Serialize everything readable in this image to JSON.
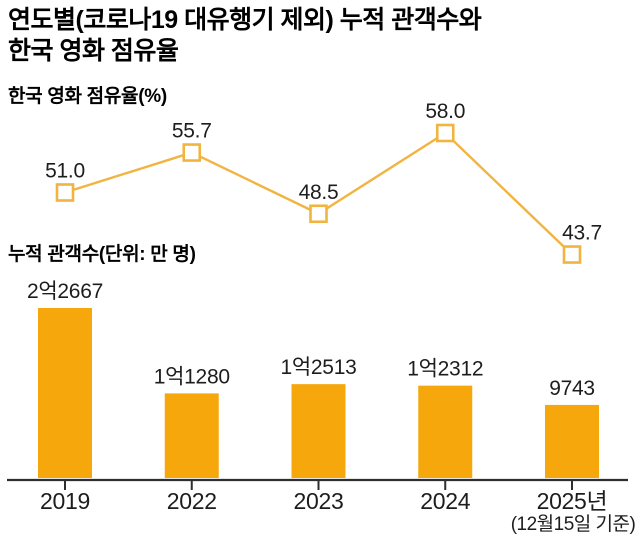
{
  "header": {
    "title_line1": "연도별(코로나19 대유행기 제외) 누적 관객수와",
    "title_line2": "한국 영화 점유율"
  },
  "x_axis": {
    "labels": [
      "2019",
      "2022",
      "2023",
      "2024",
      "2025년"
    ],
    "footnote": "(12월15일 기준)"
  },
  "colors": {
    "bar": "#F5A70C",
    "line": "#F2B441",
    "axis": "#2E2E2E",
    "label_text": "#1D1D1D"
  },
  "chart_data": [
    {
      "type": "line",
      "title": "한국 영화 점유율(%)",
      "categories": [
        "2019",
        "2022",
        "2023",
        "2024",
        "2025년"
      ],
      "values": [
        51.0,
        55.7,
        48.5,
        58.0,
        43.7
      ],
      "labels": [
        "51.0",
        "55.7",
        "48.5",
        "58.0",
        "43.7"
      ],
      "unit": "%",
      "marker": "hollow-square",
      "legend": "none",
      "grid": false,
      "ylim": [
        40,
        62
      ]
    },
    {
      "type": "bar",
      "title": "누적 관객수(단위: 만 명)",
      "categories": [
        "2019",
        "2022",
        "2023",
        "2024",
        "2025년"
      ],
      "values": [
        22667,
        11280,
        12513,
        12312,
        9743
      ],
      "labels": [
        "2억2667",
        "1억1280",
        "1억2513",
        "1억2312",
        "9743"
      ],
      "unit": "만 명",
      "legend": "none",
      "grid": false,
      "ylim": [
        0,
        24000
      ]
    }
  ]
}
